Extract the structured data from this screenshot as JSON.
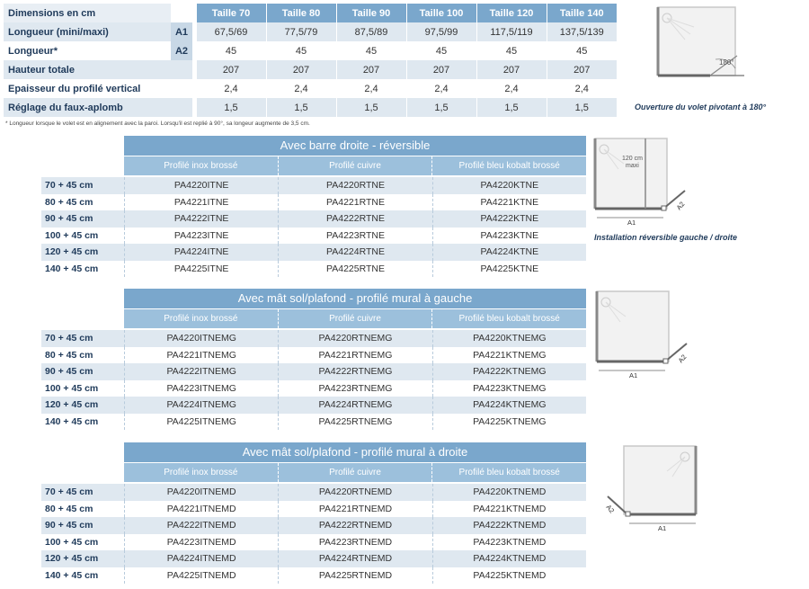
{
  "dimensions": {
    "header_label": "Dimensions en cm",
    "sizes": [
      "Taille 70",
      "Taille 80",
      "Taille 90",
      "Taille 100",
      "Taille 120",
      "Taille 140"
    ],
    "rows": [
      {
        "label": "Longueur (mini/maxi)",
        "code": "A1",
        "values": [
          "67,5/69",
          "77,5/79",
          "87,5/89",
          "97,5/99",
          "117,5/119",
          "137,5/139"
        ]
      },
      {
        "label": "Longueur*",
        "code": "A2",
        "values": [
          "45",
          "45",
          "45",
          "45",
          "45",
          "45"
        ]
      },
      {
        "label": "Hauteur totale",
        "code": "",
        "values": [
          "207",
          "207",
          "207",
          "207",
          "207",
          "207"
        ]
      },
      {
        "label": "Epaisseur du profilé vertical",
        "code": "",
        "values": [
          "2,4",
          "2,4",
          "2,4",
          "2,4",
          "2,4",
          "2,4"
        ]
      },
      {
        "label": "Réglage du faux-aplomb",
        "code": "",
        "values": [
          "1,5",
          "1,5",
          "1,5",
          "1,5",
          "1,5",
          "1,5"
        ]
      }
    ],
    "footnote": "* Longueur lorsque le volet est en alignement avec la paroi. Lorsqu'il est replié à 90°, sa longeur augmente de 3,5 cm."
  },
  "sections": [
    {
      "title": "Avec barre droite - réversible",
      "columns": [
        "Profilé inox brossé",
        "Profilé cuivre",
        "Profilé bleu kobalt brossé"
      ],
      "rows": [
        {
          "label": "70 + 45 cm",
          "cells": [
            "PA4220ITNE",
            "PA4220RTNE",
            "PA4220KTNE"
          ]
        },
        {
          "label": "80 + 45 cm",
          "cells": [
            "PA4221ITNE",
            "PA4221RTNE",
            "PA4221KTNE"
          ]
        },
        {
          "label": "90 + 45 cm",
          "cells": [
            "PA4222ITNE",
            "PA4222RTNE",
            "PA4222KTNE"
          ]
        },
        {
          "label": "100 + 45 cm",
          "cells": [
            "PA4223ITNE",
            "PA4223RTNE",
            "PA4223KTNE"
          ]
        },
        {
          "label": "120 + 45 cm",
          "cells": [
            "PA4224ITNE",
            "PA4224RTNE",
            "PA4224KTNE"
          ]
        },
        {
          "label": "140 + 45 cm",
          "cells": [
            "PA4225ITNE",
            "PA4225RTNE",
            "PA4225KTNE"
          ]
        }
      ]
    },
    {
      "title": "Avec mât sol/plafond - profilé mural à gauche",
      "columns": [
        "Profilé inox brossé",
        "Profilé cuivre",
        "Profilé bleu kobalt brossé"
      ],
      "rows": [
        {
          "label": "70 + 45 cm",
          "cells": [
            "PA4220ITNEMG",
            "PA4220RTNEMG",
            "PA4220KTNEMG"
          ]
        },
        {
          "label": "80 + 45 cm",
          "cells": [
            "PA4221ITNEMG",
            "PA4221RTNEMG",
            "PA4221KTNEMG"
          ]
        },
        {
          "label": "90 + 45 cm",
          "cells": [
            "PA4222ITNEMG",
            "PA4222RTNEMG",
            "PA4222KTNEMG"
          ]
        },
        {
          "label": "100 + 45 cm",
          "cells": [
            "PA4223ITNEMG",
            "PA4223RTNEMG",
            "PA4223KTNEMG"
          ]
        },
        {
          "label": "120 + 45 cm",
          "cells": [
            "PA4224ITNEMG",
            "PA4224RTNEMG",
            "PA4224KTNEMG"
          ]
        },
        {
          "label": "140 + 45 cm",
          "cells": [
            "PA4225ITNEMG",
            "PA4225RTNEMG",
            "PA4225KTNEMG"
          ]
        }
      ]
    },
    {
      "title": "Avec mât sol/plafond - profilé mural à droite",
      "columns": [
        "Profilé inox brossé",
        "Profilé cuivre",
        "Profilé bleu kobalt brossé"
      ],
      "rows": [
        {
          "label": "70 + 45 cm",
          "cells": [
            "PA4220ITNEMD",
            "PA4220RTNEMD",
            "PA4220KTNEMD"
          ]
        },
        {
          "label": "80 + 45 cm",
          "cells": [
            "PA4221ITNEMD",
            "PA4221RTNEMD",
            "PA4221KTNEMD"
          ]
        },
        {
          "label": "90 + 45 cm",
          "cells": [
            "PA4222ITNEMD",
            "PA4222RTNEMD",
            "PA4222KTNEMD"
          ]
        },
        {
          "label": "100 + 45 cm",
          "cells": [
            "PA4223ITNEMD",
            "PA4223RTNEMD",
            "PA4223KTNEMD"
          ]
        },
        {
          "label": "120 + 45 cm",
          "cells": [
            "PA4224ITNEMD",
            "PA4224RTNEMD",
            "PA4224KTNEMD"
          ]
        },
        {
          "label": "140 + 45 cm",
          "cells": [
            "PA4225ITNEMD",
            "PA4225RTNEMD",
            "PA4225KTNEMD"
          ]
        }
      ]
    }
  ],
  "diagrams": {
    "top": {
      "angle_label": "180°",
      "caption": "Ouverture du volet pivotant à 180°"
    },
    "reversible": {
      "height_label_1": "120 cm",
      "height_label_2": "maxi",
      "a1": "A1",
      "a2": "A2",
      "caption": "Installation réversible gauche / droite"
    },
    "left": {
      "a1": "A1",
      "a2": "A2"
    },
    "right": {
      "a1": "A1",
      "a2": "A2"
    }
  },
  "colors": {
    "header_blue": "#7aa7cc",
    "subheader_blue": "#9cc0dc",
    "row_stripe": "#dfe8f0",
    "text_navy": "#1f3a5a"
  }
}
